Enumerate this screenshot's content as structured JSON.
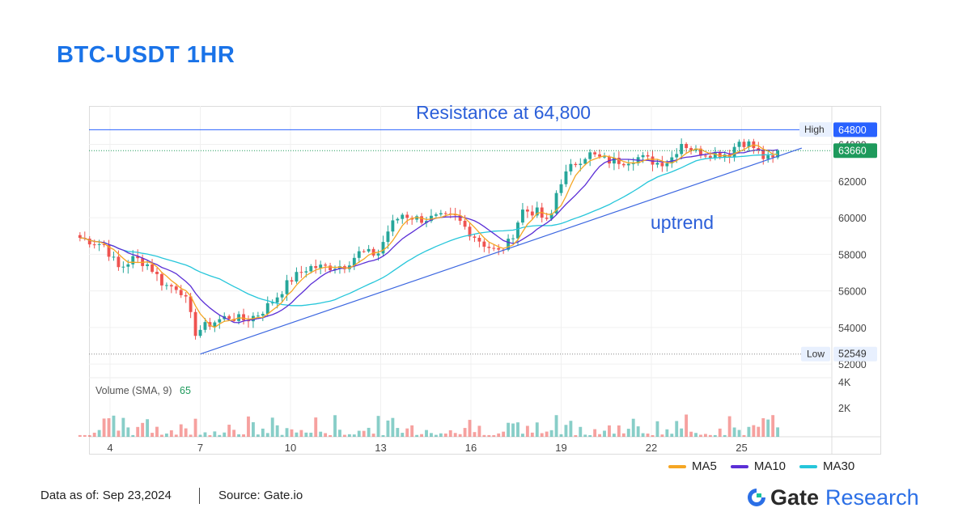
{
  "title": "BTC-USDT 1HR",
  "footer": {
    "data_as_of": "Data as of: Sep 23,2024",
    "source": "Source: Gate.io"
  },
  "brand": {
    "name": "Gate",
    "sub": "Research"
  },
  "colors": {
    "up": "#26a69a",
    "down": "#ef5350",
    "ma5": "#f5a623",
    "ma10": "#5b2fd6",
    "ma30": "#26c6da",
    "annotation": "#2b5fd9",
    "resistance_tag": "#2962ff",
    "price_tag": "#1e9a5c"
  },
  "chart_data": {
    "type": "candlestick",
    "x_ticks": [
      "4",
      "7",
      "10",
      "13",
      "16",
      "19",
      "22",
      "25"
    ],
    "y_ticks": [
      "52000",
      "54000",
      "56000",
      "58000",
      "60000",
      "62000",
      "64000"
    ],
    "volume_ticks": [
      "2K",
      "4K"
    ],
    "volume_label": "Volume (SMA, 9)",
    "volume_sma_value": "65",
    "high": {
      "label": "High",
      "value": "64812"
    },
    "low": {
      "label": "Low",
      "value": "52549"
    },
    "resistance": {
      "value": 64800,
      "tag": "64800",
      "annotation": "Resistance at 64,800"
    },
    "last_price": {
      "value": 63660,
      "tag": "63660"
    },
    "trend_annotation": "uptrend",
    "trendline": {
      "from": {
        "x": 7.0,
        "price": 52549
      },
      "to": {
        "x": 27.0,
        "price": 63800
      }
    },
    "legend": [
      {
        "name": "MA5",
        "color": "#f5a623"
      },
      {
        "name": "MA10",
        "color": "#5b2fd6"
      },
      {
        "name": "MA30",
        "color": "#26c6da"
      }
    ],
    "anchors": [
      {
        "x": 3.0,
        "price": 58900
      },
      {
        "x": 3.8,
        "price": 58500
      },
      {
        "x": 4.3,
        "price": 57200
      },
      {
        "x": 4.8,
        "price": 57800
      },
      {
        "x": 5.3,
        "price": 57400
      },
      {
        "x": 5.8,
        "price": 56300
      },
      {
        "x": 6.3,
        "price": 56200
      },
      {
        "x": 6.6,
        "price": 55200
      },
      {
        "x": 6.8,
        "price": 53700
      },
      {
        "x": 7.3,
        "price": 54200
      },
      {
        "x": 7.9,
        "price": 54600
      },
      {
        "x": 8.5,
        "price": 54400
      },
      {
        "x": 9.0,
        "price": 54800
      },
      {
        "x": 9.5,
        "price": 55600
      },
      {
        "x": 10.0,
        "price": 56600
      },
      {
        "x": 10.6,
        "price": 57300
      },
      {
        "x": 11.2,
        "price": 57300
      },
      {
        "x": 11.8,
        "price": 57400
      },
      {
        "x": 12.3,
        "price": 58100
      },
      {
        "x": 12.9,
        "price": 58000
      },
      {
        "x": 13.3,
        "price": 59500
      },
      {
        "x": 13.7,
        "price": 60200
      },
      {
        "x": 14.3,
        "price": 59900
      },
      {
        "x": 14.9,
        "price": 60000
      },
      {
        "x": 15.5,
        "price": 60000
      },
      {
        "x": 15.9,
        "price": 59300
      },
      {
        "x": 16.4,
        "price": 58600
      },
      {
        "x": 16.9,
        "price": 58100
      },
      {
        "x": 17.3,
        "price": 58700
      },
      {
        "x": 17.7,
        "price": 60400
      },
      {
        "x": 18.2,
        "price": 60300
      },
      {
        "x": 18.6,
        "price": 59600
      },
      {
        "x": 18.9,
        "price": 61800
      },
      {
        "x": 19.4,
        "price": 62900
      },
      {
        "x": 19.9,
        "price": 63500
      },
      {
        "x": 20.5,
        "price": 63100
      },
      {
        "x": 21.1,
        "price": 63100
      },
      {
        "x": 21.6,
        "price": 63300
      },
      {
        "x": 22.2,
        "price": 63000
      },
      {
        "x": 22.6,
        "price": 63100
      },
      {
        "x": 23.0,
        "price": 64100
      },
      {
        "x": 23.5,
        "price": 63600
      },
      {
        "x": 24.1,
        "price": 63500
      },
      {
        "x": 24.6,
        "price": 63500
      },
      {
        "x": 24.9,
        "price": 64200
      },
      {
        "x": 25.3,
        "price": 64000
      },
      {
        "x": 25.7,
        "price": 63300
      },
      {
        "x": 26.0,
        "price": 63100
      },
      {
        "x": 26.3,
        "price": 63660
      }
    ]
  }
}
